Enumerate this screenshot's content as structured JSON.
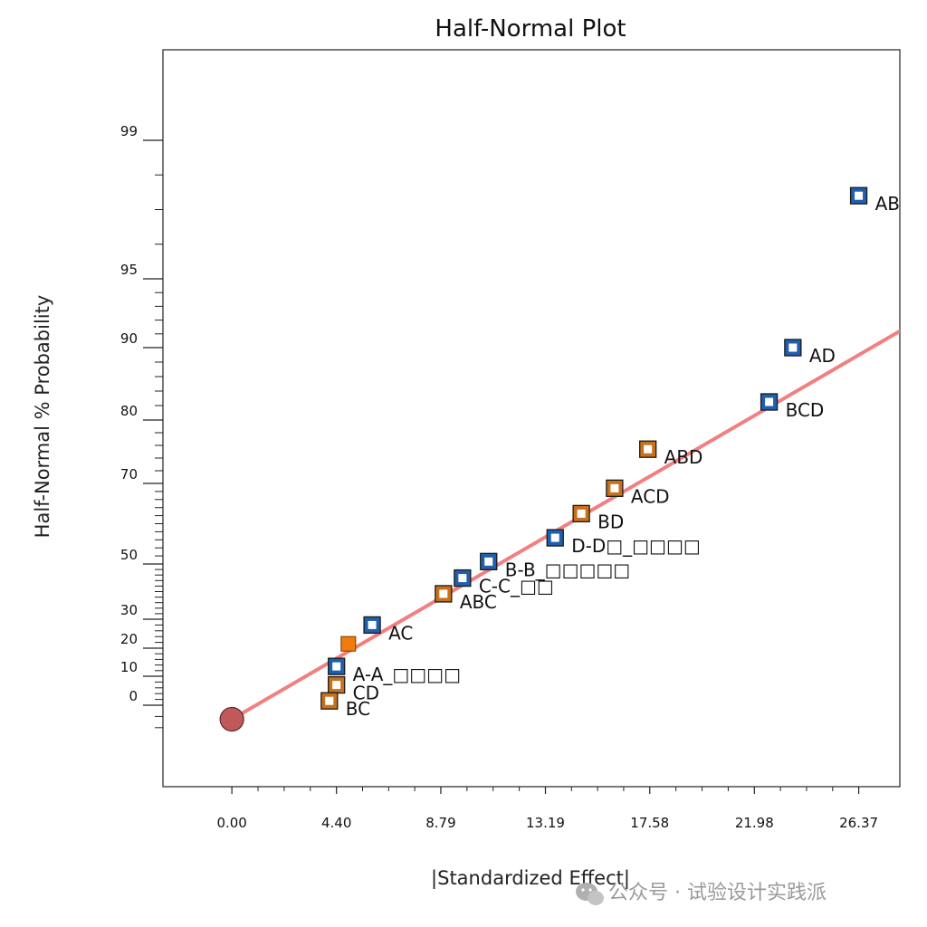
{
  "chart_data": {
    "type": "scatter",
    "title": "Half-Normal Plot",
    "xlabel": "|Standardized Effect|",
    "ylabel": "Half-Normal % Probability",
    "xlim": [
      -2.9,
      28.1
    ],
    "x_ticks": [
      {
        "value": 0.0,
        "label": "0.00"
      },
      {
        "value": 4.4,
        "label": "4.40"
      },
      {
        "value": 8.79,
        "label": "8.79"
      },
      {
        "value": 13.19,
        "label": "13.19"
      },
      {
        "value": 17.58,
        "label": "17.58"
      },
      {
        "value": 21.98,
        "label": "21.98"
      },
      {
        "value": 26.37,
        "label": "26.37"
      }
    ],
    "y_ticks": [
      {
        "value": 0,
        "label": "0"
      },
      {
        "value": 10,
        "label": "10"
      },
      {
        "value": 20,
        "label": "20"
      },
      {
        "value": 30,
        "label": "30"
      },
      {
        "value": 50,
        "label": "50"
      },
      {
        "value": 70,
        "label": "70"
      },
      {
        "value": 80,
        "label": "80"
      },
      {
        "value": 90,
        "label": "90"
      },
      {
        "value": 95,
        "label": "95"
      },
      {
        "value": 99,
        "label": "99"
      }
    ],
    "y_scale": "half-normal probability",
    "grid": false,
    "legend": "none",
    "colors": {
      "positive_effect": "#1f5fae",
      "negative_effect": "#c8711c",
      "error": "#f07c10",
      "reference_line": "#f28080",
      "origin": "#c05a5a"
    },
    "points": [
      {
        "label": "AB",
        "x": 26.37,
        "y": 97.4,
        "effect": "positive"
      },
      {
        "label": "AD",
        "x": 23.6,
        "y": 90.0,
        "effect": "positive"
      },
      {
        "label": "BCD",
        "x": 22.6,
        "y": 82.5,
        "effect": "positive"
      },
      {
        "label": "ABD",
        "x": 17.5,
        "y": 75.4,
        "effect": "negative"
      },
      {
        "label": "ACD",
        "x": 16.1,
        "y": 68.8,
        "effect": "negative"
      },
      {
        "label": "BD",
        "x": 14.7,
        "y": 62.5,
        "effect": "negative"
      },
      {
        "label": "D-D□_□□□□",
        "x": 13.6,
        "y": 56.5,
        "effect": "positive"
      },
      {
        "label": "B-B_□□□□□",
        "x": 10.8,
        "y": 50.6,
        "effect": "positive"
      },
      {
        "label": "C-C_□□",
        "x": 9.7,
        "y": 44.9,
        "effect": "positive"
      },
      {
        "label": "ABC",
        "x": 8.9,
        "y": 39.2,
        "effect": "negative"
      },
      {
        "label": "AC",
        "x": 5.9,
        "y": 28.0,
        "effect": "positive"
      },
      {
        "label": "",
        "x": 4.9,
        "y": 21.5,
        "effect": "error"
      },
      {
        "label": "A-A_□□□□",
        "x": 4.4,
        "y": 13.5,
        "effect": "positive"
      },
      {
        "label": "CD",
        "x": 4.4,
        "y": 7.0,
        "effect": "negative"
      },
      {
        "label": "BC",
        "x": 4.1,
        "y": 1.5,
        "effect": "negative"
      }
    ],
    "origin_point": {
      "x": 0.0,
      "y": -2.5
    },
    "reference_line": {
      "from": {
        "x": 0.0,
        "y": -2.5
      },
      "to": {
        "x": 28.1,
        "y": 91.2
      }
    }
  },
  "watermark": "公众号 · 试验设计实践派"
}
